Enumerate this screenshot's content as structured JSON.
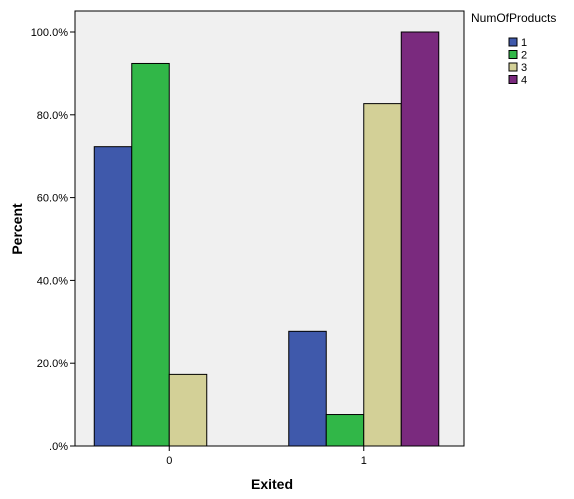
{
  "chart_data": {
    "type": "bar",
    "categories": [
      "0",
      "1"
    ],
    "xlabel": "Exited",
    "ylabel": "Percent",
    "ylim": [
      0,
      100
    ],
    "yticks": [
      ".0%",
      "20.0%",
      "40.0%",
      "60.0%",
      "80.0%",
      "100.0%"
    ],
    "grid": false,
    "legend": {
      "title": "NumOfProducts",
      "placement": "top-right"
    },
    "series": [
      {
        "name": "1",
        "color": "#3f59ab",
        "values": [
          72.3,
          27.7
        ]
      },
      {
        "name": "2",
        "color": "#31b748",
        "values": [
          92.4,
          7.6
        ]
      },
      {
        "name": "3",
        "color": "#d3d097",
        "values": [
          17.3,
          82.7
        ]
      },
      {
        "name": "4",
        "color": "#7a2a7e",
        "values": [
          null,
          100.0
        ]
      }
    ]
  }
}
